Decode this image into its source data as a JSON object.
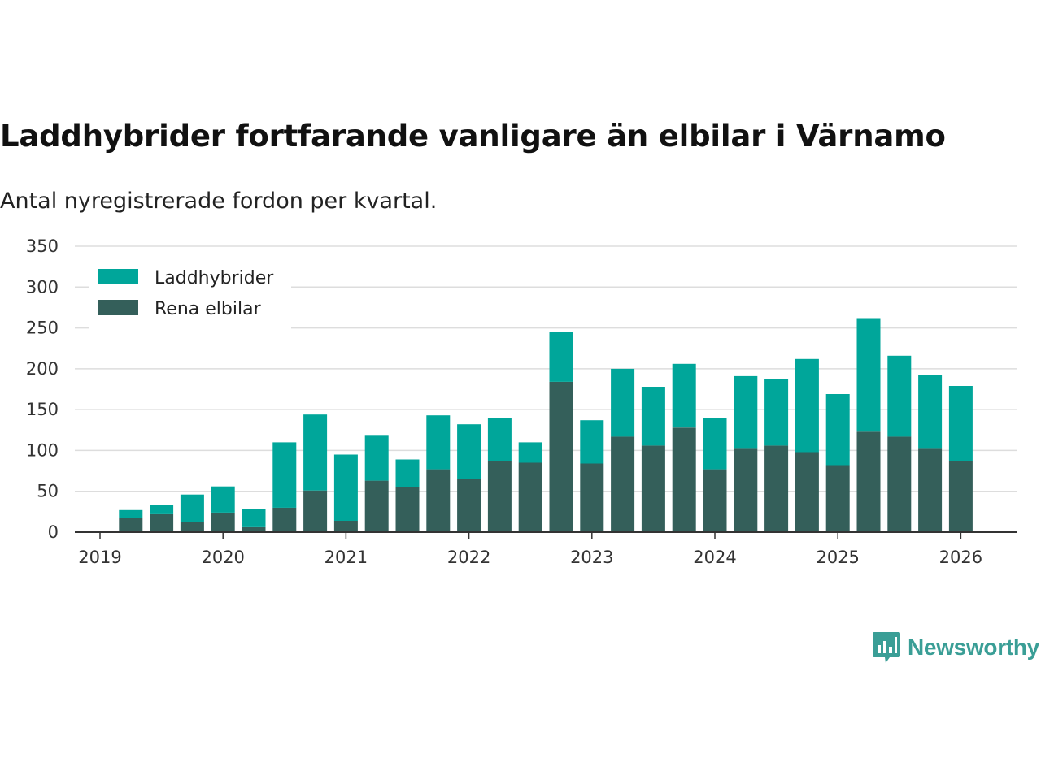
{
  "title": "Laddhybrider fortfarande vanligare än elbilar i Värnamo",
  "subtitle": "Antal nyregistrerade fordon per kvartal.",
  "brand": {
    "name": "Newsworthy",
    "icon": "bar-chart-logo-icon"
  },
  "colors": {
    "phev": "#00a69a",
    "bev": "#345f5a",
    "grid": "#dddddd",
    "axis": "#333333"
  },
  "chart_data": {
    "type": "bar",
    "stacked": true,
    "title": "Laddhybrider fortfarande vanligare än elbilar i Värnamo",
    "subtitle": "Antal nyregistrerade fordon per kvartal.",
    "xlabel": "",
    "ylabel": "",
    "ylim": [
      0,
      350
    ],
    "yticks": [
      0,
      50,
      100,
      150,
      200,
      250,
      300,
      350
    ],
    "xlim": [
      2019.0,
      2026.5
    ],
    "xticks": [
      "2019",
      "2020",
      "2021",
      "2022",
      "2023",
      "2024",
      "2025",
      "2026"
    ],
    "grid": true,
    "legend_position": "top-left",
    "categories": [
      "2019 Q2",
      "2019 Q3",
      "2019 Q4",
      "2020 Q1",
      "2020 Q2",
      "2020 Q3",
      "2020 Q4",
      "2021 Q1",
      "2021 Q2",
      "2021 Q3",
      "2021 Q4",
      "2022 Q1",
      "2022 Q2",
      "2022 Q3",
      "2022 Q4",
      "2023 Q1",
      "2023 Q2",
      "2023 Q3",
      "2023 Q4",
      "2024 Q1",
      "2024 Q2",
      "2024 Q3",
      "2024 Q4",
      "2025 Q1",
      "2025 Q2",
      "2025 Q3",
      "2025 Q4",
      "2026 Q1"
    ],
    "series": [
      {
        "name": "Rena elbilar",
        "color": "#345f5a",
        "values": [
          17,
          22,
          12,
          24,
          6,
          30,
          51,
          14,
          63,
          55,
          77,
          65,
          87,
          85,
          184,
          84,
          117,
          106,
          128,
          77,
          102,
          106,
          98,
          82,
          123,
          117,
          102,
          87
        ]
      },
      {
        "name": "Laddhybrider",
        "color": "#00a69a",
        "values": [
          10,
          11,
          34,
          32,
          22,
          80,
          93,
          81,
          56,
          34,
          66,
          67,
          53,
          25,
          61,
          53,
          83,
          72,
          78,
          63,
          89,
          81,
          114,
          87,
          139,
          99,
          90,
          92
        ]
      }
    ],
    "legend": [
      "Laddhybrider",
      "Rena elbilar"
    ]
  }
}
